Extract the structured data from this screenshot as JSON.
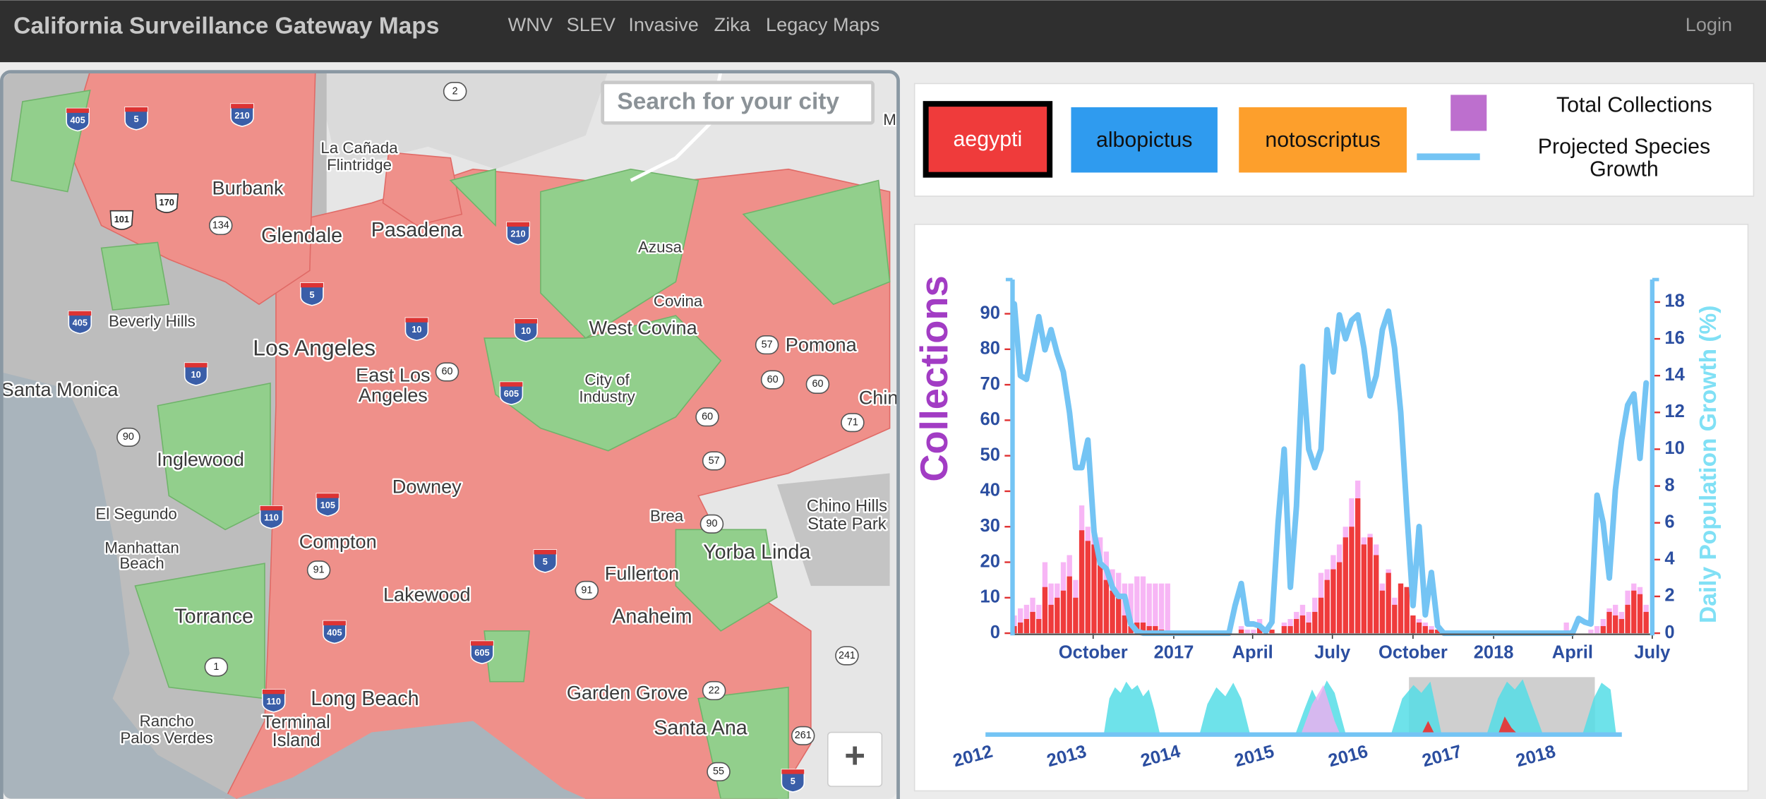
{
  "navbar": {
    "brand": "California Surveillance Gateway Maps",
    "links": [
      "WNV",
      "SLEV",
      "Invasive",
      "Zika",
      "Legacy Maps"
    ],
    "login": "Login"
  },
  "map": {
    "search_placeholder": "Search for your city",
    "zoom_in": "+",
    "place_labels": [
      "La Cañada",
      "Flintridge",
      "Burbank",
      "Glendale",
      "Pasadena",
      "Azusa",
      "Covina",
      "West Covina",
      "Pomona",
      "Beverly Hills",
      "Los Angeles",
      "East Los",
      "Angeles",
      "City of",
      "Industry",
      "Santa Monica",
      "Inglewood",
      "Downey",
      "El Segundo",
      "Manhattan",
      "Beach",
      "Compton",
      "Brea",
      "Chino Hills",
      "State Park",
      "Yorba Linda",
      "Fullerton",
      "Lakewood",
      "Torrance",
      "Anaheim",
      "Long Beach",
      "Garden Grove",
      "Rancho",
      "Palos Verdes",
      "Terminal",
      "Island",
      "Santa Ana",
      "Chin",
      "M"
    ],
    "route_shields": [
      405,
      5,
      210,
      2,
      170,
      134,
      101,
      210,
      5,
      405,
      10,
      10,
      10,
      60,
      605,
      57,
      60,
      60,
      71,
      90,
      105,
      110,
      91,
      5,
      91,
      90,
      57,
      605,
      405,
      1,
      110,
      22,
      241,
      261,
      55,
      5,
      60
    ]
  },
  "chart_data": {
    "type": "combo",
    "y_label": "Collections",
    "y2_label": "Daily Population Growth (%)",
    "species": [
      {
        "name": "aegypti",
        "color": "#ef3b3b",
        "selected": true,
        "values": [
          2,
          3,
          4,
          6,
          4,
          13,
          8,
          10,
          12,
          16,
          10,
          29,
          26,
          25,
          20,
          15,
          12,
          10,
          5,
          2,
          3,
          3,
          2,
          2,
          1,
          0,
          0,
          0,
          0,
          0,
          0,
          0,
          0,
          0,
          0,
          0,
          0,
          1,
          0,
          0,
          2,
          0,
          1,
          0,
          2,
          2,
          4,
          5,
          3,
          6,
          10,
          15,
          18,
          20,
          27,
          30,
          38,
          25,
          27,
          22,
          12,
          17,
          8,
          14,
          13,
          5,
          3,
          2,
          1,
          1,
          0,
          0,
          0,
          0,
          0,
          0,
          0,
          0,
          0,
          0,
          0,
          0,
          0,
          0,
          0,
          0,
          0,
          0,
          0,
          0,
          0,
          0,
          0,
          0,
          0,
          0,
          2,
          6,
          5,
          4,
          8,
          12,
          11,
          6
        ]
      },
      {
        "name": "albopictus",
        "color": "#2f9bef",
        "selected": false
      },
      {
        "name": "notoscriptus",
        "color": "#fd9f2c",
        "selected": false
      }
    ],
    "x": [
      "2016-07-03",
      "2016-07-10",
      "2016-07-17",
      "2016-07-24",
      "2016-07-31",
      "2016-08-07",
      "2016-08-14",
      "2016-08-21",
      "2016-08-28",
      "2016-09-04",
      "2016-09-11",
      "2016-09-18",
      "2016-09-25",
      "2016-10-02",
      "2016-10-09",
      "2016-10-16",
      "2016-10-23",
      "2016-10-30",
      "2016-11-06",
      "2016-11-13",
      "2016-11-20",
      "2016-11-27",
      "2016-12-04",
      "2016-12-11",
      "2016-12-18",
      "2016-12-25",
      "2017-01-01",
      "2017-01-08",
      "2017-01-15",
      "2017-01-22",
      "2017-01-29",
      "2017-02-05",
      "2017-02-12",
      "2017-02-19",
      "2017-02-26",
      "2017-03-05",
      "2017-03-12",
      "2017-03-19",
      "2017-03-26",
      "2017-04-02",
      "2017-04-09",
      "2017-04-16",
      "2017-04-23",
      "2017-04-30",
      "2017-05-07",
      "2017-05-14",
      "2017-05-21",
      "2017-05-28",
      "2017-06-04",
      "2017-06-11",
      "2017-06-18",
      "2017-06-25",
      "2017-07-02",
      "2017-07-09",
      "2017-07-16",
      "2017-07-23",
      "2017-07-30",
      "2017-08-06",
      "2017-08-13",
      "2017-08-20",
      "2017-08-27",
      "2017-09-03",
      "2017-09-10",
      "2017-09-17",
      "2017-09-24",
      "2017-10-01",
      "2017-10-08",
      "2017-10-15",
      "2017-10-22",
      "2017-10-29",
      "2017-11-05",
      "2017-11-12",
      "2017-11-19",
      "2017-11-26",
      "2017-12-03",
      "2017-12-10",
      "2017-12-17",
      "2017-12-24",
      "2017-12-31",
      "2018-01-07",
      "2018-01-14",
      "2018-01-21",
      "2018-01-28",
      "2018-02-04",
      "2018-02-11",
      "2018-02-18",
      "2018-02-25",
      "2018-03-04",
      "2018-03-11",
      "2018-03-18",
      "2018-03-25",
      "2018-04-01",
      "2018-04-08",
      "2018-04-15",
      "2018-04-22",
      "2018-04-29",
      "2018-05-06",
      "2018-05-13",
      "2018-05-20",
      "2018-05-27",
      "2018-06-03",
      "2018-06-10",
      "2018-06-17",
      "2018-06-24"
    ],
    "series": [
      {
        "name": "Total Collections",
        "type": "bar",
        "color": "#f7b6f5",
        "swatch_color": "#bd6fce",
        "values": [
          5,
          7,
          8,
          10,
          8,
          20,
          14,
          14,
          20,
          22,
          15,
          36,
          30,
          28,
          27,
          23,
          18,
          17,
          14,
          14,
          16,
          16,
          14,
          14,
          14,
          14,
          0,
          0,
          0,
          0,
          0,
          0,
          0,
          0,
          0,
          0,
          0,
          2,
          1,
          1,
          4,
          1,
          1,
          0,
          3,
          4,
          6,
          8,
          6,
          10,
          17,
          18,
          22,
          25,
          30,
          38,
          43,
          27,
          28,
          25,
          14,
          18,
          10,
          14,
          13,
          5,
          4,
          3,
          2,
          1,
          0,
          0,
          0,
          0,
          0,
          0,
          0,
          0,
          0,
          0,
          0,
          0,
          0,
          0,
          0,
          0,
          0,
          0,
          0,
          0,
          3,
          1,
          0,
          0,
          1,
          2,
          4,
          7,
          8,
          6,
          12,
          14,
          13,
          8
        ]
      },
      {
        "name": "Projected Species Growth",
        "type": "line",
        "axis": "y2",
        "color": "#74c4f4",
        "values": [
          17.9,
          14.0,
          13.8,
          15.5,
          17.2,
          15.4,
          16.5,
          15.2,
          14.2,
          12.0,
          9.0,
          9.0,
          10.5,
          5.5,
          3.8,
          3.5,
          2.5,
          2.0,
          2.0,
          0.5,
          0.1,
          0,
          0,
          0,
          0,
          0,
          0,
          0,
          0,
          0,
          0,
          0,
          0,
          0,
          0,
          0,
          1.5,
          2.7,
          0.5,
          0.5,
          0.4,
          0.1,
          0.6,
          6.0,
          10.0,
          2.5,
          6.9,
          14.5,
          10.0,
          9.0,
          10.0,
          16.5,
          14.2,
          17.3,
          16.0,
          17.0,
          17.3,
          15.5,
          12.9,
          14.0,
          16.5,
          17.5,
          15.5,
          12.0,
          6.6,
          1.5,
          5.8,
          1.0,
          3.3,
          0.4,
          0,
          0,
          0,
          0,
          0,
          0,
          0,
          0,
          0,
          0,
          0,
          0,
          0,
          0,
          0,
          0,
          0,
          0,
          0,
          0,
          0,
          0,
          0.8,
          0.6,
          0.5,
          7.5,
          6.0,
          3.0,
          7.8,
          10.5,
          12.4,
          13.0,
          9.5,
          13.6
        ]
      }
    ],
    "xlim": [
      "2016-07",
      "2018-07"
    ],
    "xticks": [
      {
        "value": "2016-10",
        "label": "October"
      },
      {
        "value": "2017-01",
        "label": "2017"
      },
      {
        "value": "2017-04",
        "label": "April"
      },
      {
        "value": "2017-07",
        "label": "July"
      },
      {
        "value": "2017-10",
        "label": "October"
      },
      {
        "value": "2018-01",
        "label": "2018"
      },
      {
        "value": "2018-04",
        "label": "April"
      },
      {
        "value": "2018-07",
        "label": "July"
      }
    ],
    "ylim": [
      0,
      99
    ],
    "yticks": [
      0,
      10,
      20,
      30,
      40,
      50,
      60,
      70,
      80,
      90
    ],
    "y2lim": [
      0,
      19.1
    ],
    "y2ticks": [
      0,
      2,
      4,
      6,
      8,
      10,
      12,
      14,
      16,
      18
    ]
  },
  "timeline": {
    "years": [
      2012,
      2013,
      2014,
      2015,
      2016,
      2017,
      2018
    ]
  }
}
